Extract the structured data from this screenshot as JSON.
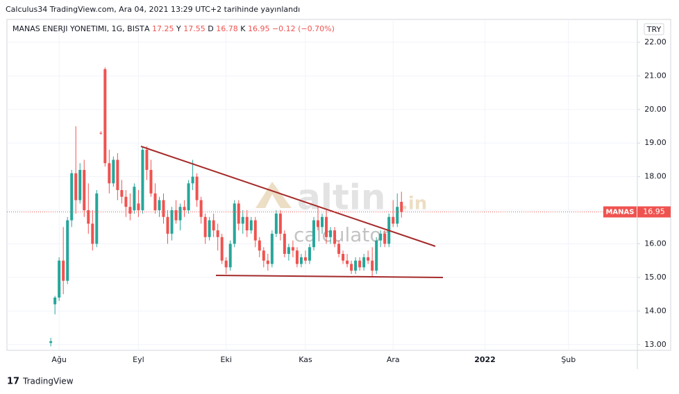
{
  "published": "Calculus34 TradingView.com, Ara 04, 2021 13:29 UTC+2 tarihinde yayınlandı",
  "footer": "TradingView",
  "chart_data": {
    "type": "candlestick",
    "title": "MANAS ENERJI YONETIMI, 1G, BIST",
    "ohlc_letters": [
      "A",
      "Y",
      "D",
      "K"
    ],
    "change": "−0.12 (−0.70%)",
    "currency": "TRY",
    "symbol": "MANAS",
    "watermark": [
      "altin",
      ".in",
      "calculator"
    ],
    "up_color": "#26a69a",
    "down_color": "#ef5350",
    "grid": true,
    "ylim": [
      12.83,
      22.68
    ],
    "yticks": [
      {
        "value": 13,
        "label": "13.00"
      },
      {
        "value": 14,
        "label": "14.00"
      },
      {
        "value": 15,
        "label": "15.00"
      },
      {
        "value": 16,
        "label": "16.00"
      },
      {
        "value": 17,
        "label": "17.00"
      },
      {
        "value": 18,
        "label": "18.00"
      },
      {
        "value": 19,
        "label": "19.00"
      },
      {
        "value": 20,
        "label": "20.00"
      },
      {
        "value": 21,
        "label": "21.00"
      },
      {
        "value": 22,
        "label": "22.00"
      }
    ],
    "categories": [
      null,
      null,
      null,
      null,
      null,
      null,
      null,
      null,
      null,
      null,
      null,
      null,
      "Ağu",
      null,
      null,
      null,
      null,
      null,
      null,
      null,
      null,
      null,
      null,
      null,
      null,
      null,
      null,
      null,
      null,
      null,
      null,
      "Eyl",
      null,
      null,
      null,
      null,
      null,
      null,
      null,
      null,
      null,
      null,
      null,
      null,
      null,
      null,
      null,
      null,
      null,
      null,
      null,
      null,
      "Eki",
      null,
      null,
      null,
      null,
      null,
      null,
      null,
      null,
      null,
      null,
      null,
      null,
      null,
      null,
      null,
      null,
      null,
      null,
      "Kas",
      null,
      null,
      null,
      null,
      null,
      null,
      null,
      null,
      null,
      null,
      null,
      null,
      null,
      null,
      null,
      null,
      null,
      null,
      null,
      null,
      "Ara",
      null,
      null,
      null,
      null,
      null,
      null,
      null,
      null,
      null,
      null,
      null,
      null,
      null,
      null,
      null,
      null,
      null,
      null,
      null,
      null,
      null,
      "2022",
      null,
      null,
      null,
      null,
      null,
      null,
      null,
      null,
      null,
      null,
      null,
      null,
      null,
      null,
      null,
      null,
      null,
      null,
      null,
      "Şub",
      null,
      null,
      null,
      null,
      null,
      null,
      null,
      null,
      null,
      null,
      null,
      null,
      null,
      null,
      null,
      null
    ],
    "open": [
      null,
      null,
      null,
      null,
      null,
      null,
      null,
      null,
      null,
      null,
      13.05,
      14.2,
      14.4,
      15.5,
      14.9,
      16.7,
      18.1,
      17.3,
      18.2,
      17.0,
      16.6,
      16.0,
      19.3,
      21.2,
      18.4,
      17.8,
      18.5,
      17.6,
      17.4,
      17.1,
      17.0,
      17.2,
      17.0,
      18.8,
      18.2,
      17.5,
      17.0,
      17.3,
      16.8,
      16.3,
      17.0,
      16.7,
      17.1,
      17.0,
      17.8,
      18.0,
      17.3,
      16.8,
      16.2,
      16.7,
      16.4,
      16.2,
      15.5,
      15.3,
      16.0,
      17.2,
      16.6,
      16.8,
      16.4,
      16.7,
      16.1,
      15.8,
      15.5,
      15.4,
      16.3,
      16.9,
      16.3,
      15.7,
      15.9,
      15.8,
      15.4,
      15.6,
      15.5,
      15.9,
      16.7,
      16.5,
      16.8,
      16.2,
      16.4,
      16.0,
      15.7,
      15.5,
      15.4,
      15.2,
      15.5,
      15.3,
      15.6,
      15.5,
      15.2,
      16.1,
      16.3,
      16.0,
      16.8,
      16.6,
      17.25,
      null,
      null,
      null,
      null,
      null,
      null,
      null,
      null,
      null,
      null,
      null,
      null,
      null,
      null,
      null,
      null,
      null,
      null,
      null,
      null,
      null,
      null,
      null,
      null,
      null,
      null,
      null,
      null,
      null,
      null,
      null,
      null,
      null,
      null,
      null,
      null,
      null,
      null,
      null,
      null,
      null,
      null,
      null,
      null,
      null,
      null,
      null,
      null,
      null,
      null,
      null,
      null,
      null,
      null,
      null,
      null
    ],
    "high": [
      null,
      null,
      null,
      null,
      null,
      null,
      null,
      null,
      null,
      null,
      13.2,
      14.45,
      15.6,
      16.5,
      16.8,
      18.2,
      19.5,
      18.4,
      18.5,
      17.8,
      17.0,
      17.6,
      19.35,
      21.25,
      18.8,
      18.6,
      18.7,
      17.9,
      17.6,
      17.5,
      17.8,
      17.6,
      18.9,
      18.9,
      18.5,
      17.8,
      17.4,
      17.5,
      17.0,
      17.1,
      17.3,
      17.2,
      17.3,
      17.9,
      18.5,
      18.1,
      17.4,
      16.9,
      16.8,
      16.9,
      16.6,
      16.3,
      15.6,
      16.1,
      17.3,
      17.3,
      17.0,
      17.0,
      16.8,
      16.8,
      16.2,
      15.9,
      15.7,
      16.4,
      17.0,
      17.0,
      16.4,
      16.0,
      16.1,
      15.9,
      15.7,
      15.8,
      16.0,
      16.8,
      17.1,
      16.9,
      17.0,
      16.5,
      16.5,
      16.1,
      15.8,
      15.7,
      15.5,
      15.6,
      15.6,
      15.7,
      15.8,
      15.9,
      16.2,
      16.4,
      16.4,
      16.9,
      17.3,
      17.5,
      17.55,
      null,
      null,
      null,
      null,
      null,
      null,
      null,
      null,
      null,
      null,
      null,
      null,
      null,
      null,
      null,
      null,
      null,
      null,
      null,
      null,
      null,
      null,
      null,
      null,
      null,
      null,
      null,
      null,
      null,
      null,
      null,
      null,
      null,
      null,
      null,
      null,
      null,
      null,
      null,
      null,
      null,
      null,
      null,
      null,
      null,
      null,
      null,
      null,
      null,
      null,
      null,
      null,
      null,
      null,
      null,
      null
    ],
    "low": [
      null,
      null,
      null,
      null,
      null,
      null,
      null,
      null,
      null,
      null,
      12.95,
      13.9,
      14.3,
      14.5,
      14.8,
      16.5,
      16.9,
      17.2,
      16.8,
      16.3,
      15.8,
      15.9,
      19.25,
      18.3,
      17.5,
      17.7,
      17.3,
      17.2,
      16.8,
      16.7,
      16.9,
      16.8,
      16.9,
      17.9,
      17.4,
      16.9,
      16.8,
      16.6,
      16.0,
      16.1,
      16.6,
      16.4,
      16.8,
      16.9,
      17.6,
      17.1,
      16.6,
      16.0,
      16.1,
      16.2,
      15.8,
      15.4,
      15.1,
      15.2,
      15.9,
      16.4,
      16.3,
      16.2,
      16.3,
      15.9,
      15.6,
      15.3,
      15.2,
      15.3,
      16.2,
      16.1,
      15.6,
      15.5,
      15.6,
      15.3,
      15.3,
      15.4,
      15.4,
      15.8,
      16.4,
      16.3,
      16.0,
      16.0,
      15.9,
      15.6,
      15.4,
      15.3,
      15.1,
      15.1,
      15.2,
      15.2,
      15.4,
      15.0,
      15.1,
      15.9,
      15.9,
      15.9,
      16.5,
      16.5,
      16.78,
      null,
      null,
      null,
      null,
      null,
      null,
      null,
      null,
      null,
      null,
      null,
      null,
      null,
      null,
      null,
      null,
      null,
      null,
      null,
      null,
      null,
      null,
      null,
      null,
      null,
      null,
      null,
      null,
      null,
      null,
      null,
      null,
      null,
      null,
      null,
      null,
      null,
      null,
      null,
      null,
      null,
      null,
      null,
      null,
      null,
      null,
      null,
      null,
      null,
      null,
      null,
      null,
      null,
      null,
      null,
      null
    ],
    "close": [
      null,
      null,
      null,
      null,
      null,
      null,
      null,
      null,
      null,
      null,
      13.1,
      14.4,
      15.5,
      14.9,
      16.7,
      18.1,
      17.3,
      18.2,
      17.0,
      16.6,
      16.0,
      17.5,
      19.28,
      18.4,
      17.8,
      18.5,
      17.6,
      17.4,
      17.1,
      16.9,
      17.7,
      17.0,
      18.8,
      18.2,
      17.5,
      17.0,
      17.3,
      16.8,
      16.3,
      17.0,
      16.7,
      17.1,
      17.0,
      17.8,
      18.0,
      17.3,
      16.8,
      16.2,
      16.7,
      16.4,
      16.2,
      15.5,
      15.3,
      16.0,
      17.2,
      16.6,
      16.8,
      16.4,
      16.7,
      16.1,
      15.8,
      15.5,
      15.4,
      16.3,
      16.9,
      16.3,
      15.7,
      15.9,
      15.8,
      15.4,
      15.6,
      15.5,
      15.9,
      16.7,
      16.5,
      16.8,
      16.2,
      16.4,
      16.0,
      15.7,
      15.5,
      15.4,
      15.2,
      15.5,
      15.3,
      15.6,
      15.5,
      15.2,
      16.1,
      16.3,
      16.0,
      16.8,
      16.6,
      17.1,
      16.95,
      null,
      null,
      null,
      null,
      null,
      null,
      null,
      null,
      null,
      null,
      null,
      null,
      null,
      null,
      null,
      null,
      null,
      null,
      null,
      null,
      null,
      null,
      null,
      null,
      null,
      null,
      null,
      null,
      null,
      null,
      null,
      null,
      null,
      null,
      null,
      null,
      null,
      null,
      null,
      null,
      null,
      null,
      null,
      null,
      null,
      null,
      null,
      null,
      null,
      null,
      null,
      null,
      null,
      null,
      null,
      null
    ]
  }
}
